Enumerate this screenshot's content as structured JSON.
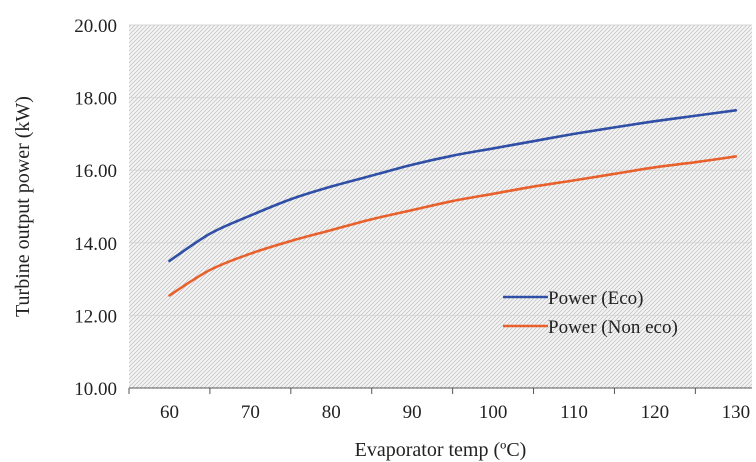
{
  "chart_data": {
    "type": "line",
    "xlabel": "Evaporator temp (ºC)",
    "ylabel": "Turbine output power (kW)",
    "xlim": [
      55,
      132
    ],
    "ylim": [
      10,
      20
    ],
    "x_ticks": [
      60,
      70,
      80,
      90,
      100,
      110,
      120,
      130
    ],
    "x_tick_labels": [
      "60",
      "70",
      "80",
      "90",
      "100",
      "110",
      "120",
      "130"
    ],
    "y_ticks": [
      10,
      12,
      14,
      16,
      18,
      20
    ],
    "y_tick_labels": [
      "10.00",
      "12.00",
      "14.00",
      "16.00",
      "18.00",
      "20.00"
    ],
    "grid": true,
    "legend_position": "lower-right",
    "x": [
      60,
      65,
      70,
      75,
      80,
      85,
      90,
      95,
      100,
      105,
      110,
      115,
      120,
      125,
      130
    ],
    "series": [
      {
        "name": "Power (Eco)",
        "color": "#2f4fa6",
        "values": [
          13.5,
          14.25,
          14.75,
          15.2,
          15.55,
          15.85,
          16.15,
          16.4,
          16.6,
          16.8,
          17.0,
          17.18,
          17.35,
          17.5,
          17.65
        ]
      },
      {
        "name": "Power (Non eco)",
        "color": "#e8612c",
        "values": [
          12.55,
          13.25,
          13.7,
          14.05,
          14.35,
          14.65,
          14.9,
          15.15,
          15.35,
          15.55,
          15.72,
          15.9,
          16.08,
          16.22,
          16.38
        ]
      }
    ]
  }
}
